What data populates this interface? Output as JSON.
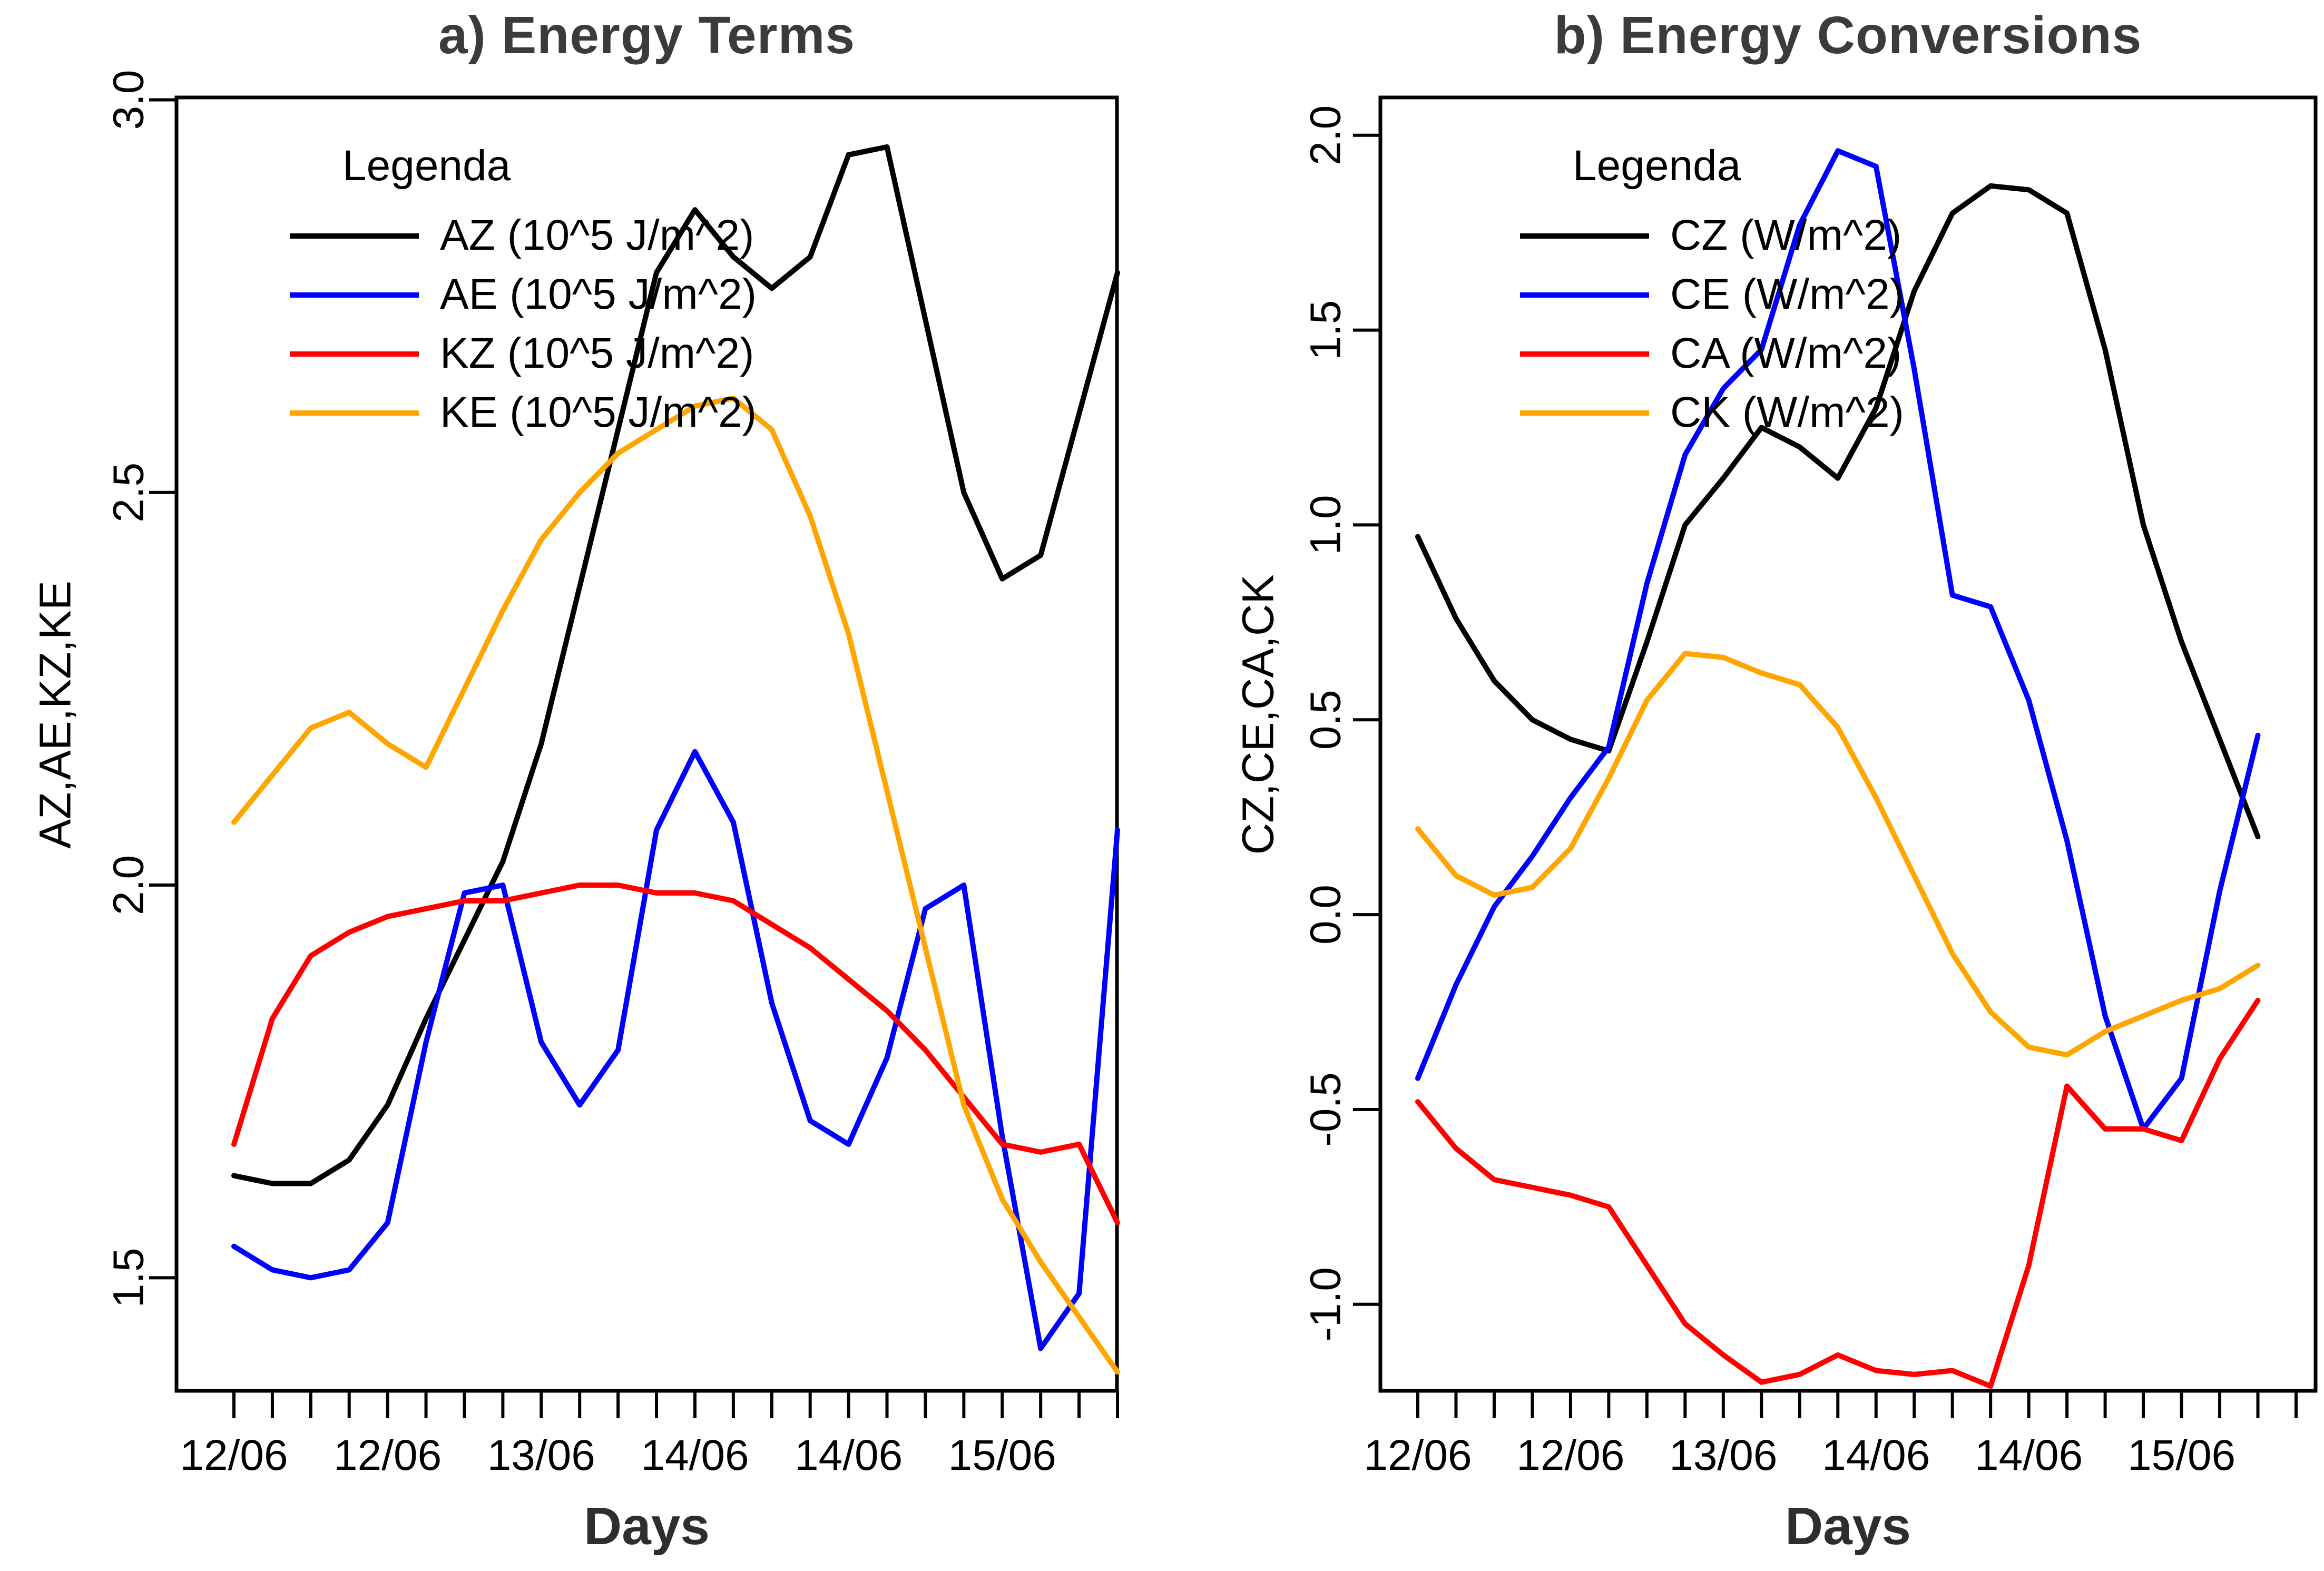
{
  "page": {
    "background": "#ffffff"
  },
  "chart_data": [
    {
      "type": "line",
      "panel": "a",
      "title": "a) Energy Terms",
      "xlabel": "Days",
      "ylabel": "AZ,AE,KZ,KE",
      "legend_title": "Legenda",
      "legend_position": "top-left",
      "grid": false,
      "x_tick_count": 24,
      "x_label_every": 4,
      "x_tick_labels": [
        "12/06",
        "12/06",
        "13/06",
        "14/06",
        "14/06",
        "15/06"
      ],
      "ylim": [
        1.356,
        3.003
      ],
      "yticks": [
        "3.0",
        "2.5",
        "2.0",
        "1.5"
      ],
      "series": [
        {
          "name": "AZ (10^5 J/m^2)",
          "color": "#000000",
          "values": [
            1.63,
            1.62,
            1.62,
            1.65,
            1.72,
            1.83,
            1.93,
            2.03,
            2.18,
            2.38,
            2.58,
            2.78,
            2.86,
            2.8,
            2.76,
            2.8,
            2.93,
            2.94,
            2.72,
            2.5,
            2.39,
            2.42,
            2.6,
            2.78
          ]
        },
        {
          "name": "AE (10^5 J/m^2)",
          "color": "#0000ff",
          "values": [
            1.54,
            1.51,
            1.5,
            1.51,
            1.57,
            1.8,
            1.99,
            2.0,
            1.8,
            1.72,
            1.79,
            2.07,
            2.17,
            2.08,
            1.85,
            1.7,
            1.67,
            1.78,
            1.97,
            2.0,
            1.68,
            1.41,
            1.48,
            2.07
          ]
        },
        {
          "name": "KZ (10^5 J/m^2)",
          "color": "#ff0000",
          "values": [
            1.67,
            1.83,
            1.91,
            1.94,
            1.96,
            1.97,
            1.98,
            1.98,
            1.99,
            2.0,
            2.0,
            1.99,
            1.99,
            1.98,
            1.95,
            1.92,
            1.88,
            1.84,
            1.79,
            1.73,
            1.67,
            1.66,
            1.67,
            1.57
          ]
        },
        {
          "name": "KE (10^5 J/m^2)",
          "color": "#ffa500",
          "values": [
            2.08,
            2.14,
            2.2,
            2.22,
            2.18,
            2.15,
            2.25,
            2.35,
            2.44,
            2.5,
            2.55,
            2.58,
            2.61,
            2.62,
            2.58,
            2.47,
            2.32,
            2.12,
            1.92,
            1.72,
            1.6,
            1.52,
            1.45,
            1.38
          ]
        }
      ]
    },
    {
      "type": "line",
      "panel": "b",
      "title": "b) Energy Conversions",
      "xlabel": "Days",
      "ylabel": "CZ,CE,CA,CK",
      "legend_title": "Legenda",
      "legend_position": "top-left",
      "grid": false,
      "x_tick_count": 24,
      "x_label_every": 4,
      "x_tick_labels": [
        "12/06",
        "12/06",
        "13/06",
        "14/06",
        "14/06",
        "15/06"
      ],
      "ylim": [
        -1.222,
        2.097
      ],
      "yticks": [
        "2.0",
        "1.5",
        "1.0",
        "0.5",
        "0.0",
        "-0.5",
        "-1.0"
      ],
      "series": [
        {
          "name": "CZ (W/m^2)",
          "color": "#000000",
          "values": [
            0.97,
            0.76,
            0.6,
            0.5,
            0.45,
            0.42,
            0.7,
            1.0,
            1.12,
            1.25,
            1.2,
            1.12,
            1.3,
            1.6,
            1.8,
            1.87,
            1.86,
            1.8,
            1.45,
            1.0,
            0.7,
            0.45,
            0.2
          ]
        },
        {
          "name": "CE (W/m^2)",
          "color": "#0000ff",
          "values": [
            -0.42,
            -0.18,
            0.02,
            0.15,
            0.3,
            0.43,
            0.85,
            1.18,
            1.35,
            1.45,
            1.77,
            1.96,
            1.92,
            1.4,
            0.82,
            0.79,
            0.55,
            0.19,
            -0.26,
            -0.55,
            -0.42,
            0.06,
            0.46
          ]
        },
        {
          "name": "CA (W/m^2)",
          "color": "#ff0000",
          "values": [
            -0.48,
            -0.6,
            -0.68,
            -0.7,
            -0.72,
            -0.75,
            -0.9,
            -1.05,
            -1.13,
            -1.2,
            -1.18,
            -1.13,
            -1.17,
            -1.18,
            -1.17,
            -1.21,
            -0.9,
            -0.44,
            -0.55,
            -0.55,
            -0.58,
            -0.37,
            -0.22
          ]
        },
        {
          "name": "CK (W/m^2)",
          "color": "#ffa500",
          "values": [
            0.22,
            0.1,
            0.05,
            0.07,
            0.17,
            0.35,
            0.55,
            0.67,
            0.66,
            0.62,
            0.59,
            0.48,
            0.3,
            0.1,
            -0.1,
            -0.25,
            -0.34,
            -0.36,
            -0.3,
            -0.26,
            -0.22,
            -0.19,
            -0.13
          ]
        }
      ]
    }
  ]
}
